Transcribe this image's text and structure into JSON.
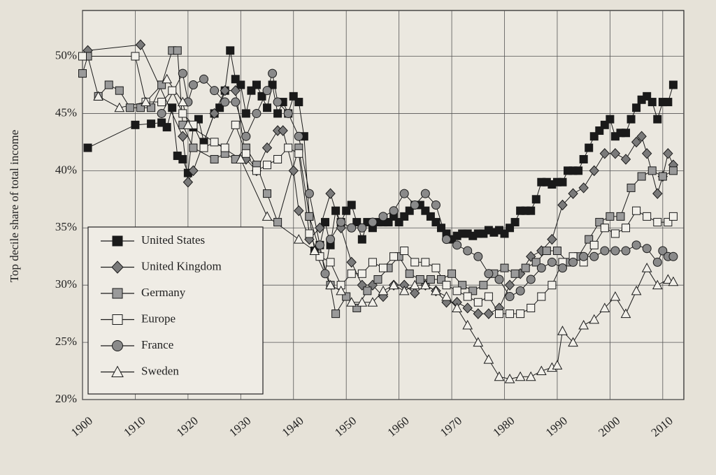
{
  "chart_data": {
    "type": "line",
    "ylabel": "Top decile share of total income",
    "xlim": [
      1900,
      2014
    ],
    "ylim": [
      20,
      54
    ],
    "xticks": [
      1900,
      1910,
      1920,
      1930,
      1940,
      1950,
      1960,
      1970,
      1980,
      1990,
      2000,
      2010
    ],
    "yticks": [
      {
        "value": 20,
        "label": "20%"
      },
      {
        "value": 25,
        "label": "25%"
      },
      {
        "value": 30,
        "label": "30%"
      },
      {
        "value": 35,
        "label": "35%"
      },
      {
        "value": 40,
        "label": "40%"
      },
      {
        "value": 45,
        "label": "45%"
      },
      {
        "value": 50,
        "label": "50%"
      }
    ],
    "grid": true,
    "legend": "lower left",
    "series": [
      {
        "name": "United States",
        "color": "#1a1a1a",
        "marker": "square",
        "marker_fill": "#1a1a1a",
        "x": [
          1901,
          1910,
          1913,
          1915,
          1916,
          1917,
          1918,
          1919,
          1920,
          1921,
          1922,
          1923,
          1925,
          1926,
          1927,
          1928,
          1929,
          1930,
          1931,
          1932,
          1933,
          1934,
          1935,
          1936,
          1937,
          1938,
          1939,
          1940,
          1941,
          1942,
          1943,
          1944,
          1945,
          1946,
          1947,
          1948,
          1949,
          1950,
          1951,
          1952,
          1953,
          1954,
          1955,
          1956,
          1957,
          1958,
          1959,
          1960,
          1961,
          1962,
          1963,
          1964,
          1965,
          1966,
          1967,
          1968,
          1969,
          1970,
          1971,
          1972,
          1973,
          1974,
          1975,
          1976,
          1977,
          1978,
          1979,
          1980,
          1981,
          1982,
          1983,
          1984,
          1985,
          1986,
          1987,
          1988,
          1989,
          1990,
          1991,
          1992,
          1993,
          1994,
          1995,
          1996,
          1997,
          1998,
          1999,
          2000,
          2001,
          2002,
          2003,
          2004,
          2005,
          2006,
          2007,
          2008,
          2009,
          2010,
          2011,
          2012
        ],
        "values": [
          42,
          44,
          44.1,
          44.2,
          43.8,
          45.5,
          41.3,
          41,
          39.8,
          43.8,
          44.5,
          42.5,
          45,
          45.5,
          47,
          50.5,
          48,
          47.5,
          45,
          47,
          47.5,
          46.5,
          45.5,
          47.5,
          45,
          46,
          45,
          46.5,
          46,
          43,
          36,
          33,
          33.5,
          35.5,
          33.5,
          36.5,
          35.5,
          36.5,
          37,
          35.5,
          34,
          35.5,
          35,
          35.5,
          35.5,
          35.5,
          36,
          35.5,
          36,
          36.5,
          37,
          37,
          36.5,
          36,
          35.5,
          35,
          34.5,
          34,
          34.3,
          34.5,
          34.5,
          34.3,
          34.5,
          34.5,
          34.8,
          34.6,
          34.8,
          34.5,
          35,
          35.5,
          36.5,
          36.5,
          36.5,
          37.5,
          39,
          39,
          38.8,
          39,
          39,
          40,
          40,
          40,
          41,
          42,
          43,
          43.5,
          44,
          44.5,
          43,
          43.3,
          43.3,
          44.5,
          45.5,
          46.2,
          46.5,
          46,
          44.5,
          46,
          46,
          47.5
        ]
      },
      {
        "name": "United Kingdom",
        "color": "#1a1a1a",
        "marker": "diamond",
        "marker_fill": "#7a7a7a",
        "x": [
          1901,
          1911,
          1919,
          1920,
          1921,
          1925,
          1927,
          1929,
          1931,
          1933,
          1935,
          1937,
          1938,
          1940,
          1941,
          1943,
          1945,
          1947,
          1949,
          1951,
          1953,
          1955,
          1957,
          1959,
          1961,
          1963,
          1965,
          1967,
          1969,
          1971,
          1973,
          1975,
          1977,
          1979,
          1981,
          1983,
          1985,
          1987,
          1989,
          1991,
          1993,
          1995,
          1997,
          1999,
          2001,
          2003,
          2005,
          2006,
          2007,
          2009,
          2010,
          2011,
          2012
        ],
        "values": [
          50.5,
          51,
          43,
          39,
          40,
          45,
          47,
          47,
          41,
          40,
          42,
          43.5,
          43.5,
          40,
          36.5,
          34,
          35,
          38,
          35,
          32,
          30,
          30,
          29,
          30,
          30,
          29.3,
          30,
          29.5,
          28.5,
          28.5,
          28,
          27.5,
          27.5,
          28,
          30,
          31,
          32.5,
          33,
          34,
          37,
          38,
          38.5,
          40,
          41.5,
          41.5,
          41,
          42.5,
          43,
          41.5,
          38,
          39.5,
          41.5,
          40.5
        ]
      },
      {
        "name": "Germany",
        "color": "#1a1a1a",
        "marker": "square",
        "marker_fill": "#9a9a9a",
        "x": [
          1900,
          1901,
          1903,
          1905,
          1907,
          1909,
          1911,
          1913,
          1915,
          1917,
          1918,
          1919,
          1921,
          1925,
          1927,
          1929,
          1931,
          1933,
          1935,
          1937,
          1941,
          1943,
          1947,
          1948,
          1950,
          1952,
          1954,
          1956,
          1958,
          1960,
          1962,
          1964,
          1966,
          1968,
          1970,
          1972,
          1974,
          1976,
          1978,
          1980,
          1982,
          1984,
          1986,
          1988,
          1990,
          1992,
          1994,
          1996,
          1998,
          2000,
          2002,
          2004,
          2006,
          2008,
          2010,
          2012
        ],
        "values": [
          48.5,
          50,
          46.5,
          47.5,
          47,
          45.5,
          45.5,
          45.5,
          47.5,
          50.5,
          50.5,
          44,
          42,
          41,
          41.5,
          41,
          42,
          40.5,
          38,
          35.5,
          42,
          36,
          30,
          27.5,
          29,
          28,
          29.5,
          30.5,
          31.5,
          32.5,
          31,
          30.5,
          30.5,
          30.5,
          31,
          30,
          29.5,
          30,
          31,
          31.5,
          31,
          31.5,
          32,
          33,
          33,
          32,
          32.5,
          34,
          35.5,
          36,
          36,
          38.5,
          39.5,
          40,
          39.5,
          40
        ]
      },
      {
        "name": "Europe",
        "color": "#1a1a1a",
        "marker": "square",
        "marker_fill": "#f2f0ea",
        "x": [
          1900,
          1910,
          1912,
          1915,
          1917,
          1919,
          1921,
          1923,
          1925,
          1927,
          1929,
          1931,
          1933,
          1935,
          1937,
          1939,
          1941,
          1943,
          1945,
          1947,
          1949,
          1951,
          1953,
          1955,
          1957,
          1959,
          1961,
          1963,
          1965,
          1967,
          1969,
          1971,
          1973,
          1975,
          1977,
          1979,
          1981,
          1983,
          1985,
          1987,
          1989,
          1991,
          1993,
          1995,
          1997,
          1999,
          2001,
          2003,
          2005,
          2007,
          2009,
          2011,
          2012
        ],
        "values": [
          50,
          50,
          46,
          46,
          47,
          45,
          44,
          42,
          42.5,
          42,
          44,
          41.5,
          40,
          40.5,
          41,
          42,
          41.5,
          34.5,
          32.5,
          32,
          30,
          31,
          31,
          32,
          31.5,
          32.5,
          33,
          32,
          32,
          31.5,
          30,
          29.5,
          29,
          28.5,
          29,
          27.5,
          27.5,
          27.5,
          28,
          29,
          30,
          32,
          32.5,
          32,
          33.5,
          35,
          34.5,
          35,
          36.5,
          36,
          35.5,
          35.5,
          36
        ]
      },
      {
        "name": "France",
        "color": "#1a1a1a",
        "marker": "circle",
        "marker_fill": "#8a8a8a",
        "x": [
          1915,
          1919,
          1920,
          1921,
          1923,
          1925,
          1927,
          1929,
          1931,
          1933,
          1935,
          1936,
          1937,
          1939,
          1941,
          1943,
          1945,
          1946,
          1947,
          1949,
          1951,
          1953,
          1955,
          1957,
          1959,
          1961,
          1963,
          1965,
          1967,
          1969,
          1971,
          1973,
          1975,
          1977,
          1979,
          1981,
          1983,
          1985,
          1987,
          1989,
          1991,
          1993,
          1995,
          1997,
          1999,
          2001,
          2003,
          2005,
          2007,
          2009,
          2010,
          2011,
          2012
        ],
        "values": [
          45,
          48.5,
          46,
          47.5,
          48,
          47,
          46,
          46,
          43,
          45,
          47,
          48.5,
          46,
          45,
          43,
          38,
          33.5,
          31,
          34,
          35.5,
          35,
          35,
          35.5,
          36,
          36.5,
          38,
          37,
          38,
          37,
          34,
          33.5,
          33,
          32.5,
          31,
          30.5,
          29,
          29.5,
          30.5,
          31.5,
          32,
          31.5,
          32,
          32.5,
          32.5,
          33,
          33,
          33,
          33.5,
          33.2,
          32,
          33,
          32.5,
          32.5
        ]
      },
      {
        "name": "Sweden",
        "color": "#1a1a1a",
        "marker": "triangle",
        "marker_fill": "#f2f0ea",
        "x": [
          1903,
          1907,
          1912,
          1916,
          1919,
          1920,
          1930,
          1935,
          1941,
          1944,
          1947,
          1949,
          1951,
          1953,
          1955,
          1957,
          1959,
          1961,
          1963,
          1965,
          1967,
          1969,
          1971,
          1973,
          1975,
          1977,
          1979,
          1981,
          1983,
          1985,
          1987,
          1989,
          1990,
          1991,
          1993,
          1995,
          1997,
          1999,
          2001,
          2003,
          2005,
          2007,
          2009,
          2011,
          2012
        ],
        "values": [
          46.5,
          45.5,
          46,
          48,
          46,
          44,
          41,
          36,
          34,
          33,
          30,
          29.5,
          28.5,
          28.5,
          28.5,
          29.5,
          30,
          29.5,
          30,
          30,
          29.5,
          29,
          28,
          26.5,
          25,
          23.5,
          22,
          21.8,
          22,
          22,
          22.5,
          22.8,
          23,
          26,
          25,
          26.5,
          27,
          28,
          29,
          27.5,
          29.5,
          31.5,
          30,
          30.5,
          30.3
        ]
      }
    ]
  }
}
